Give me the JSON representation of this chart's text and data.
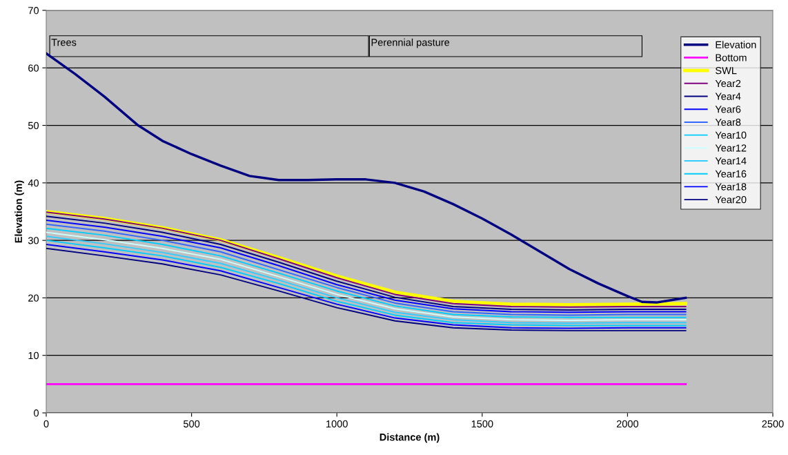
{
  "chart_data": {
    "type": "line",
    "xlabel": "Distance (m)",
    "ylabel": "Elevation (m)",
    "xlim": [
      0,
      2500
    ],
    "ylim": [
      0,
      70
    ],
    "xticks": [
      0,
      500,
      1000,
      1500,
      2000,
      2500
    ],
    "yticks": [
      0,
      10,
      20,
      30,
      40,
      50,
      60,
      70
    ],
    "grid": "y",
    "legend": "right",
    "marker": "none",
    "line_style": "solid",
    "bands": [
      {
        "axis": "x",
        "from": 12,
        "to": 1109,
        "label": "Trees",
        "color": "#c0c0c0"
      },
      {
        "axis": "x",
        "from": 1112,
        "to": 2050,
        "label": "Perennial pasture",
        "color": "#c0c0c0"
      }
    ],
    "series": [
      {
        "name": "Elevation",
        "color": "#000080",
        "x": [
          0,
          100,
          200,
          316,
          400,
          500,
          600,
          700,
          800,
          900,
          1000,
          1100,
          1200,
          1300,
          1400,
          1500,
          1600,
          1700,
          1800,
          1900,
          2000,
          2050,
          2100,
          2150,
          2200
        ],
        "values": [
          62.5,
          58.9,
          55.0,
          50.0,
          47.3,
          45.0,
          43.0,
          41.2,
          40.5,
          40.5,
          40.6,
          40.6,
          40.0,
          38.5,
          36.3,
          33.8,
          31.0,
          28.0,
          25.0,
          22.5,
          20.3,
          19.3,
          19.2,
          19.6,
          20.0
        ]
      },
      {
        "name": "Bottom",
        "color": "#ff00ff",
        "x": [
          0,
          2200
        ],
        "values": [
          5,
          5
        ]
      },
      {
        "name": "SWL",
        "color": "#ffff00",
        "x": [
          0,
          200,
          400,
          600,
          800,
          1000,
          1200,
          1400,
          1600,
          1800,
          2000,
          2200
        ],
        "values": [
          35.0,
          33.8,
          32.2,
          30.1,
          27.0,
          23.8,
          21.0,
          19.4,
          18.9,
          18.8,
          18.9,
          19.0
        ]
      },
      {
        "name": "Year2",
        "color": "#800080",
        "x": [
          0,
          200,
          400,
          600,
          800,
          1000,
          1200,
          1400,
          1600,
          1800,
          2000,
          2200
        ],
        "values": [
          34.9,
          33.7,
          32.1,
          30.0,
          26.8,
          23.5,
          20.6,
          19.0,
          18.5,
          18.4,
          18.5,
          18.5
        ]
      },
      {
        "name": "Year4",
        "color": "#000080",
        "x": [
          0,
          200,
          400,
          600,
          800,
          1000,
          1200,
          1400,
          1600,
          1800,
          2000,
          2200
        ],
        "values": [
          34.2,
          33.0,
          31.4,
          29.3,
          26.2,
          22.9,
          20.1,
          18.5,
          18.0,
          17.9,
          18.0,
          18.0
        ]
      },
      {
        "name": "Year6",
        "color": "#0000ff",
        "x": [
          0,
          200,
          400,
          600,
          800,
          1000,
          1200,
          1400,
          1600,
          1800,
          2000,
          2200
        ],
        "values": [
          33.5,
          32.3,
          30.7,
          28.7,
          25.6,
          22.3,
          19.6,
          18.1,
          17.6,
          17.5,
          17.6,
          17.6
        ]
      },
      {
        "name": "Year8",
        "color": "#3366ff",
        "x": [
          0,
          200,
          400,
          600,
          800,
          1000,
          1200,
          1400,
          1600,
          1800,
          2000,
          2200
        ],
        "values": [
          32.8,
          31.6,
          30.0,
          28.0,
          24.9,
          21.8,
          19.1,
          17.6,
          17.1,
          17.0,
          17.1,
          17.1
        ]
      },
      {
        "name": "Year10",
        "color": "#00ccff",
        "x": [
          0,
          200,
          400,
          600,
          800,
          1000,
          1200,
          1400,
          1600,
          1800,
          2000,
          2200
        ],
        "values": [
          32.1,
          30.9,
          29.3,
          27.3,
          24.3,
          21.2,
          18.6,
          17.1,
          16.7,
          16.6,
          16.6,
          16.6
        ]
      },
      {
        "name": "Year12",
        "color": "#ccffff",
        "x": [
          0,
          200,
          400,
          600,
          800,
          1000,
          1200,
          1400,
          1600,
          1800,
          2000,
          2200
        ],
        "values": [
          31.4,
          30.1,
          28.6,
          26.7,
          23.7,
          20.6,
          18.1,
          16.7,
          16.2,
          16.1,
          16.2,
          16.2
        ]
      },
      {
        "name": "Year14",
        "color": "#33ccff",
        "x": [
          0,
          200,
          400,
          600,
          800,
          1000,
          1200,
          1400,
          1600,
          1800,
          2000,
          2200
        ],
        "values": [
          30.7,
          29.4,
          27.9,
          26.0,
          23.1,
          20.0,
          17.5,
          16.2,
          15.7,
          15.6,
          15.7,
          15.7
        ]
      },
      {
        "name": "Year16",
        "color": "#00ccff",
        "x": [
          0,
          200,
          400,
          600,
          800,
          1000,
          1200,
          1400,
          1600,
          1800,
          2000,
          2200
        ],
        "values": [
          30.0,
          28.7,
          27.3,
          25.3,
          22.5,
          19.4,
          17.0,
          15.7,
          15.3,
          15.2,
          15.2,
          15.2
        ]
      },
      {
        "name": "Year18",
        "color": "#0000ff",
        "x": [
          0,
          200,
          400,
          600,
          800,
          1000,
          1200,
          1400,
          1600,
          1800,
          2000,
          2200
        ],
        "values": [
          29.3,
          28.0,
          26.6,
          24.7,
          21.8,
          18.9,
          16.5,
          15.3,
          14.8,
          14.7,
          14.8,
          14.8
        ]
      },
      {
        "name": "Year20",
        "color": "#000080",
        "x": [
          0,
          200,
          400,
          600,
          800,
          1000,
          1200,
          1400,
          1600,
          1800,
          2000,
          2200
        ],
        "values": [
          28.6,
          27.3,
          25.9,
          24.0,
          21.2,
          18.3,
          16.0,
          14.8,
          14.4,
          14.3,
          14.3,
          14.3
        ]
      }
    ]
  }
}
